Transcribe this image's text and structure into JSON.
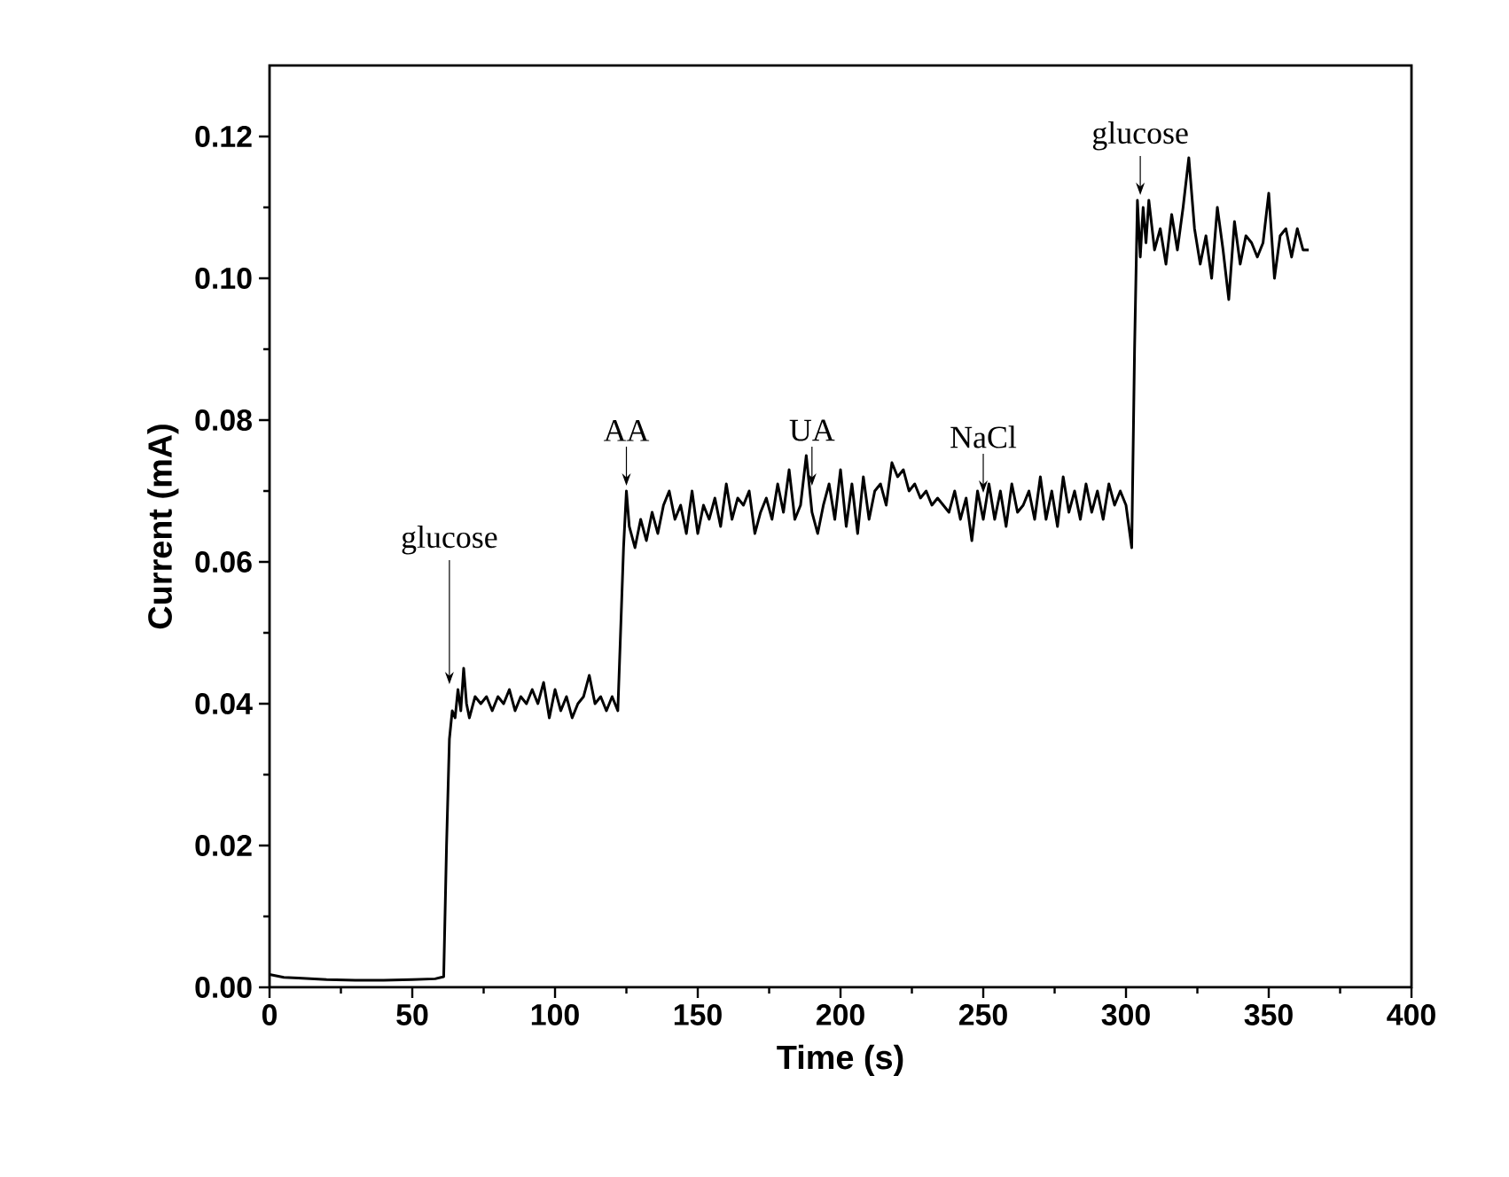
{
  "chart_data": {
    "type": "line",
    "xlabel": "Time (s)",
    "ylabel": "Current (mA)",
    "xlim": [
      0,
      400
    ],
    "ylim": [
      0,
      0.13
    ],
    "xticks": [
      0,
      50,
      100,
      150,
      200,
      250,
      300,
      350,
      400
    ],
    "yticks": [
      {
        "value": 0,
        "label": "0.00"
      },
      {
        "value": 0.02,
        "label": "0.02"
      },
      {
        "value": 0.04,
        "label": "0.04"
      },
      {
        "value": 0.06,
        "label": "0.06"
      },
      {
        "value": 0.08,
        "label": "0.08"
      },
      {
        "value": 0.1,
        "label": "0.10"
      },
      {
        "value": 0.12,
        "label": "0.12"
      }
    ],
    "grid": false,
    "marker": "none",
    "line_style": "solid",
    "annotations": [
      {
        "text": "glucose",
        "x": 63,
        "y": 0.042
      },
      {
        "text": "AA",
        "x": 125,
        "y": 0.07
      },
      {
        "text": "UA",
        "x": 190,
        "y": 0.07
      },
      {
        "text": "NaCl",
        "x": 250,
        "y": 0.069
      },
      {
        "text": "glucose",
        "x": 305,
        "y": 0.111
      }
    ],
    "series": [
      {
        "color": "#000000",
        "x": [
          0,
          5,
          10,
          20,
          30,
          40,
          50,
          58,
          61,
          62,
          63,
          64,
          65,
          66,
          67,
          68,
          69,
          70,
          72,
          74,
          76,
          78,
          80,
          82,
          84,
          86,
          88,
          90,
          92,
          94,
          96,
          98,
          100,
          102,
          104,
          106,
          108,
          110,
          112,
          114,
          116,
          118,
          120,
          121,
          122,
          124,
          125,
          126,
          128,
          130,
          132,
          134,
          136,
          138,
          140,
          142,
          144,
          146,
          148,
          150,
          152,
          154,
          156,
          158,
          160,
          162,
          164,
          166,
          168,
          170,
          172,
          174,
          176,
          178,
          180,
          182,
          184,
          186,
          188,
          190,
          192,
          194,
          196,
          198,
          200,
          202,
          204,
          206,
          208,
          210,
          212,
          214,
          216,
          218,
          220,
          222,
          224,
          226,
          228,
          230,
          232,
          234,
          236,
          238,
          240,
          242,
          244,
          246,
          248,
          250,
          252,
          254,
          256,
          258,
          260,
          262,
          264,
          266,
          268,
          270,
          272,
          274,
          276,
          278,
          280,
          282,
          284,
          286,
          288,
          290,
          292,
          294,
          296,
          298,
          300,
          302,
          303,
          304,
          305,
          306,
          307,
          308,
          310,
          312,
          314,
          316,
          318,
          320,
          322,
          324,
          326,
          328,
          330,
          332,
          334,
          336,
          338,
          340,
          342,
          344,
          346,
          348,
          350,
          352,
          354,
          356,
          358,
          360,
          362,
          364
        ],
        "values": [
          0.0018,
          0.0014,
          0.0013,
          0.0011,
          0.001,
          0.001,
          0.0011,
          0.0012,
          0.0015,
          0.02,
          0.035,
          0.039,
          0.038,
          0.042,
          0.039,
          0.045,
          0.04,
          0.038,
          0.041,
          0.04,
          0.041,
          0.039,
          0.041,
          0.04,
          0.042,
          0.039,
          0.041,
          0.04,
          0.042,
          0.04,
          0.043,
          0.038,
          0.042,
          0.039,
          0.041,
          0.038,
          0.04,
          0.041,
          0.044,
          0.04,
          0.041,
          0.039,
          0.041,
          0.04,
          0.039,
          0.062,
          0.07,
          0.065,
          0.062,
          0.066,
          0.063,
          0.067,
          0.064,
          0.068,
          0.07,
          0.066,
          0.068,
          0.064,
          0.07,
          0.064,
          0.068,
          0.066,
          0.069,
          0.065,
          0.071,
          0.066,
          0.069,
          0.068,
          0.07,
          0.064,
          0.067,
          0.069,
          0.066,
          0.071,
          0.067,
          0.073,
          0.066,
          0.068,
          0.075,
          0.067,
          0.064,
          0.068,
          0.071,
          0.066,
          0.073,
          0.065,
          0.071,
          0.064,
          0.072,
          0.066,
          0.07,
          0.071,
          0.068,
          0.074,
          0.072,
          0.073,
          0.07,
          0.071,
          0.069,
          0.07,
          0.068,
          0.069,
          0.068,
          0.067,
          0.07,
          0.066,
          0.069,
          0.063,
          0.07,
          0.066,
          0.071,
          0.066,
          0.07,
          0.065,
          0.071,
          0.067,
          0.068,
          0.07,
          0.066,
          0.072,
          0.066,
          0.07,
          0.065,
          0.072,
          0.067,
          0.07,
          0.066,
          0.071,
          0.067,
          0.07,
          0.066,
          0.071,
          0.068,
          0.07,
          0.068,
          0.062,
          0.09,
          0.111,
          0.103,
          0.11,
          0.105,
          0.111,
          0.104,
          0.107,
          0.102,
          0.109,
          0.104,
          0.11,
          0.117,
          0.107,
          0.102,
          0.106,
          0.1,
          0.11,
          0.104,
          0.097,
          0.108,
          0.102,
          0.106,
          0.105,
          0.103,
          0.105,
          0.112,
          0.1,
          0.106,
          0.107,
          0.103,
          0.107,
          0.104,
          0.104
        ]
      }
    ]
  }
}
